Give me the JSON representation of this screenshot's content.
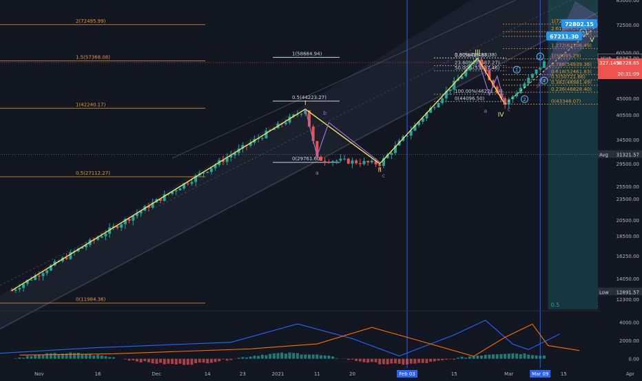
{
  "chart_data": {
    "type": "candlestick",
    "symbol_note": "",
    "price_axis": {
      "ticks": [
        "85000.00",
        "72500.00",
        "60500.00",
        "52500.00",
        "45000.00",
        "40500.00",
        "34500.00",
        "29500.00",
        "25500.00",
        "23500.00",
        "20500.00",
        "18500.00",
        "16250.00",
        "14050.00",
        "12300.00"
      ],
      "range": [
        11500,
        85000
      ],
      "scale": "log",
      "labels": {
        "high_label": "High",
        "high_value": "58367.00",
        "current_value": "56728.65",
        "current_change": "327.14%",
        "countdown": "20:31:09",
        "avg_label": "Avg",
        "avg_value": "31321.57",
        "low_label": "Low",
        "low_value": "12891.57"
      }
    },
    "time_axis": {
      "ticks": [
        "Nov",
        "16",
        "Dec",
        "14",
        "23",
        "2021",
        "11",
        "20",
        "Feb 03",
        "15",
        "Mar",
        "Mar 09",
        "15",
        "Apr"
      ],
      "highlighted": [
        "Feb 03",
        "Mar 09"
      ]
    },
    "targets": {
      "upper": "72802.15",
      "lower": "67211.30"
    },
    "fib_major": [
      {
        "label": "2(72495.99)",
        "price": 72495.99
      },
      {
        "label": "1.5(57368.08)",
        "price": 57368.08
      },
      {
        "label": "1(42240.17)",
        "price": 42240.17
      },
      {
        "label": "0.5(27112.27)",
        "price": 27112.27
      },
      {
        "label": "0(11984.36)",
        "price": 11984.36
      }
    ],
    "fib_minor": [
      {
        "label": "1(58684.94)",
        "price": 58684.94
      },
      {
        "label": "0.5(44223.27)",
        "price": 44223.27
      },
      {
        "label": "0(29761.60)",
        "price": 29761.6
      }
    ],
    "fib_right": [
      {
        "label": "1(72736.80)",
        "price": 72736.8
      },
      {
        "label": "2.618(69242.44)",
        "price": 69242.44
      },
      {
        "label": "1.618(67209.02)",
        "price": 67209.02
      },
      {
        "label": "1.272(62106.49)",
        "price": 62106.49
      },
      {
        "label": "1(58095.29)",
        "price": 58095.29
      },
      {
        "label": "0.786(54939.36)",
        "price": 54939.36
      },
      {
        "label": "0.618(52461.83)",
        "price": 52461.83
      },
      {
        "label": "0.5(50721.66)",
        "price": 50721.66
      },
      {
        "label": "0.382(48981.49)",
        "price": 48981.49
      },
      {
        "label": "0.236(46828.40)",
        "price": 46828.4
      },
      {
        "label": "0(43348.07)",
        "price": 43348.07
      }
    ],
    "fib_inner": [
      {
        "label": "0.5(58416.87)",
        "price": 58416.87
      },
      {
        "label": "0.00%(58488.38)",
        "price": 58488.38
      },
      {
        "label": "23.60%(55587.27)",
        "price": 55587.27
      },
      {
        "label": "50.00%(53797.46)",
        "price": 53797.46
      },
      {
        "label": "0(44096.50)",
        "price": 44096.5
      },
      {
        "label": "100.00%(46221.44)",
        "price": 46221.44
      }
    ],
    "wave_labels": {
      "major": [
        "I",
        "II",
        "III",
        "IV",
        "V"
      ],
      "minor": [
        "a",
        "b",
        "c"
      ],
      "circled": [
        "1",
        "2",
        "3",
        "4",
        "5"
      ]
    },
    "projection_ratios": [
      "0.5",
      "1",
      "1.382"
    ],
    "macd": {
      "ticks": [
        "4000.00",
        "2000.00",
        "0.00"
      ],
      "range": [
        -1000,
        5000
      ]
    },
    "colors": {
      "bg": "#131722",
      "up": "#26a69a",
      "down": "#ef5350",
      "wave": "#f5e663",
      "fib": "#e0953a",
      "channel": "#9598a1",
      "macd": "#2962ff",
      "signal": "#ff6d00",
      "target": "#2196f3",
      "highlight_line": "#2962ff"
    },
    "series": {
      "key_points": [
        {
          "date": "2020-10-25",
          "price": 13000
        },
        {
          "date": "2021-01-08",
          "price": 42000
        },
        {
          "date": "2021-01-11",
          "price": 30400
        },
        {
          "date": "2021-01-27",
          "price": 29500
        },
        {
          "date": "2021-02-21",
          "price": 58367
        },
        {
          "date": "2021-02-28",
          "price": 43300
        },
        {
          "date": "2021-03-10",
          "price": 56728.65
        }
      ]
    }
  }
}
